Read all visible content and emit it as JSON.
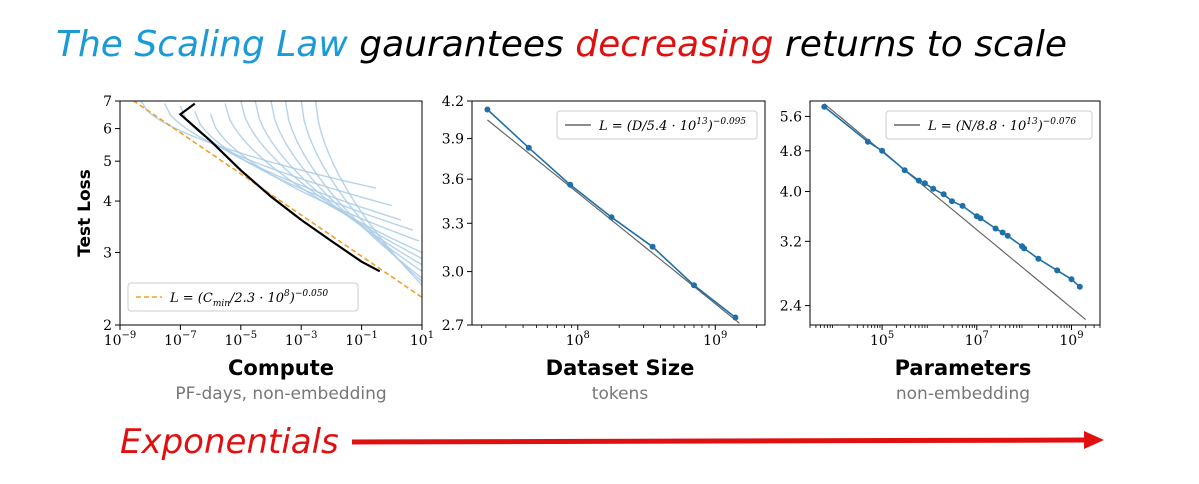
{
  "headline": {
    "part1": "The Scaling Law",
    "part2": " gaurantees ",
    "part3": "decreasing",
    "part4": " returns to scale",
    "color_blue": "#1a9ad6",
    "color_red": "#e01010"
  },
  "captions": [
    {
      "title": "Compute",
      "subtitle": "PF-days, non-embedding"
    },
    {
      "title": "Dataset Size",
      "subtitle": "tokens"
    },
    {
      "title": "Parameters",
      "subtitle": "non-embedding"
    }
  ],
  "footer": {
    "label": "Exponentials",
    "arrow_color": "#e01010"
  },
  "chart_data": [
    {
      "type": "line",
      "ylabel": "Test Loss",
      "xscale": "log",
      "yscale": "log",
      "xlim": [
        1e-09,
        10
      ],
      "ylim": [
        2,
        7
      ],
      "xticks": [
        {
          "value": 1e-09,
          "base": "10",
          "exp": "−9"
        },
        {
          "value": 1e-07,
          "base": "10",
          "exp": "−7"
        },
        {
          "value": 1e-05,
          "base": "10",
          "exp": "−5"
        },
        {
          "value": 0.001,
          "base": "10",
          "exp": "−3"
        },
        {
          "value": 0.1,
          "base": "10",
          "exp": "−1"
        },
        {
          "value": 10,
          "base": "10",
          "exp": "1"
        }
      ],
      "yticks": [
        {
          "value": 2,
          "label": "2"
        },
        {
          "value": 3,
          "label": "3"
        },
        {
          "value": 4,
          "label": "4"
        },
        {
          "value": 5,
          "label": "5"
        },
        {
          "value": 6,
          "label": "6"
        },
        {
          "value": 7,
          "label": "7"
        }
      ],
      "legend": {
        "position": "bottom-left",
        "text": "L = (C_min/2.3 · 10^8)^−0.050",
        "main": "L = (C",
        "sub": "min",
        "mid": "/2.3 · 10",
        "sup1": "8",
        "close": ")",
        "sup2": "−0.050"
      },
      "fit": {
        "constant": 230000000.0,
        "exponent": -0.05,
        "x_range": [
          1e-09,
          10
        ]
      },
      "frontier": [
        [
          3e-07,
          6.9
        ],
        [
          1e-07,
          6.5
        ],
        [
          1e-06,
          5.6
        ],
        [
          1e-05,
          4.75
        ],
        [
          0.0001,
          4.1
        ],
        [
          0.001,
          3.6
        ],
        [
          0.01,
          3.2
        ],
        [
          0.1,
          2.85
        ],
        [
          0.4,
          2.7
        ]
      ],
      "curves": [
        {
          "start": 5e-09,
          "y0": 7.0,
          "end": 0.3,
          "y1": 4.3
        },
        {
          "start": 3e-08,
          "y0": 6.9,
          "end": 1,
          "y1": 3.9
        },
        {
          "start": 1e-07,
          "y0": 6.8,
          "end": 2,
          "y1": 3.6
        },
        {
          "start": 3e-07,
          "y0": 6.6,
          "end": 5,
          "y1": 3.4
        },
        {
          "start": 1e-06,
          "y0": 6.5,
          "end": 8,
          "y1": 3.2
        },
        {
          "start": 3e-06,
          "y0": 6.9,
          "end": 10,
          "y1": 3.0
        },
        {
          "start": 1e-05,
          "y0": 7.0,
          "end": 10,
          "y1": 2.9
        },
        {
          "start": 3e-05,
          "y0": 7.0,
          "end": 10,
          "y1": 2.8
        },
        {
          "start": 0.0001,
          "y0": 7.0,
          "end": 10,
          "y1": 2.7
        },
        {
          "start": 0.0003,
          "y0": 7.0,
          "end": 10,
          "y1": 2.6
        },
        {
          "start": 0.001,
          "y0": 7.0,
          "end": 10,
          "y1": 2.55
        },
        {
          "start": 0.003,
          "y0": 7.0,
          "end": 10,
          "y1": 2.5
        }
      ],
      "colors": {
        "curves": "#a9cbe6",
        "frontier": "#000000",
        "fit": "#f0a030"
      }
    },
    {
      "type": "line",
      "xscale": "log",
      "yscale": "log",
      "xlim": [
        17000000.0,
        2300000000.0
      ],
      "ylim": [
        2.7,
        4.2
      ],
      "xticks": [
        {
          "value": 100000000.0,
          "base": "10",
          "exp": "8"
        },
        {
          "value": 1000000000.0,
          "base": "10",
          "exp": "9"
        }
      ],
      "yticks": [
        {
          "value": 2.7,
          "label": "2.7"
        },
        {
          "value": 3.0,
          "label": "3.0"
        },
        {
          "value": 3.3,
          "label": "3.3"
        },
        {
          "value": 3.6,
          "label": "3.6"
        },
        {
          "value": 3.9,
          "label": "3.9"
        },
        {
          "value": 4.2,
          "label": "4.2"
        }
      ],
      "legend": {
        "position": "top-right",
        "text": "L = (D/5.4 · 10^13)^−0.095",
        "main": "L = (D/5.4 · 10",
        "sup1": "13",
        "close": ")",
        "sup2": "−0.095"
      },
      "fit": {
        "constant": 54000000000000.0,
        "exponent": -0.095,
        "x_range": [
          22000000.0,
          1500000000.0
        ]
      },
      "points": [
        [
          22000000.0,
          4.13
        ],
        [
          44000000.0,
          3.83
        ],
        [
          88000000.0,
          3.56
        ],
        [
          176000000.0,
          3.34
        ],
        [
          350000000.0,
          3.15
        ],
        [
          700000000.0,
          2.92
        ],
        [
          1400000000.0,
          2.74
        ]
      ],
      "colors": {
        "points": "#1f6fa8",
        "fit": "#666666"
      }
    },
    {
      "type": "line",
      "xscale": "log",
      "yscale": "log",
      "xlim": [
        3000.0,
        4000000000.0
      ],
      "ylim": [
        2.2,
        6.0
      ],
      "xticks": [
        {
          "value": 100000.0,
          "base": "10",
          "exp": "5"
        },
        {
          "value": 10000000.0,
          "base": "10",
          "exp": "7"
        },
        {
          "value": 1000000000.0,
          "base": "10",
          "exp": "9"
        }
      ],
      "yticks": [
        {
          "value": 2.4,
          "label": "2.4"
        },
        {
          "value": 3.2,
          "label": "3.2"
        },
        {
          "value": 4.0,
          "label": "4.0"
        },
        {
          "value": 4.8,
          "label": "4.8"
        },
        {
          "value": 5.6,
          "label": "5.6"
        }
      ],
      "legend": {
        "position": "top-right",
        "text": "L = (N/8.8 · 10^13)^−0.076",
        "main": "L = (N/8.8 · 10",
        "sup1": "13",
        "close": ")",
        "sup2": "−0.076"
      },
      "fit": {
        "constant": 88000000000000.0,
        "exponent": -0.076,
        "x_range": [
          6000.0,
          2000000000.0
        ]
      },
      "points": [
        [
          6000.0,
          5.85
        ],
        [
          50000.0,
          5.0
        ],
        [
          100000.0,
          4.8
        ],
        [
          300000.0,
          4.4
        ],
        [
          600000.0,
          4.2
        ],
        [
          800000.0,
          4.15
        ],
        [
          1200000.0,
          4.05
        ],
        [
          2000000.0,
          3.95
        ],
        [
          3000000.0,
          3.83
        ],
        [
          5000000.0,
          3.75
        ],
        [
          10000000.0,
          3.58
        ],
        [
          12000000.0,
          3.55
        ],
        [
          25000000.0,
          3.39
        ],
        [
          35000000.0,
          3.33
        ],
        [
          45000000.0,
          3.28
        ],
        [
          90000000.0,
          3.13
        ],
        [
          100000000.0,
          3.1
        ],
        [
          200000000.0,
          2.96
        ],
        [
          500000000.0,
          2.81
        ],
        [
          1000000000.0,
          2.7
        ],
        [
          1500000000.0,
          2.61
        ]
      ],
      "colors": {
        "points": "#1f6fa8",
        "fit": "#666666"
      }
    }
  ]
}
